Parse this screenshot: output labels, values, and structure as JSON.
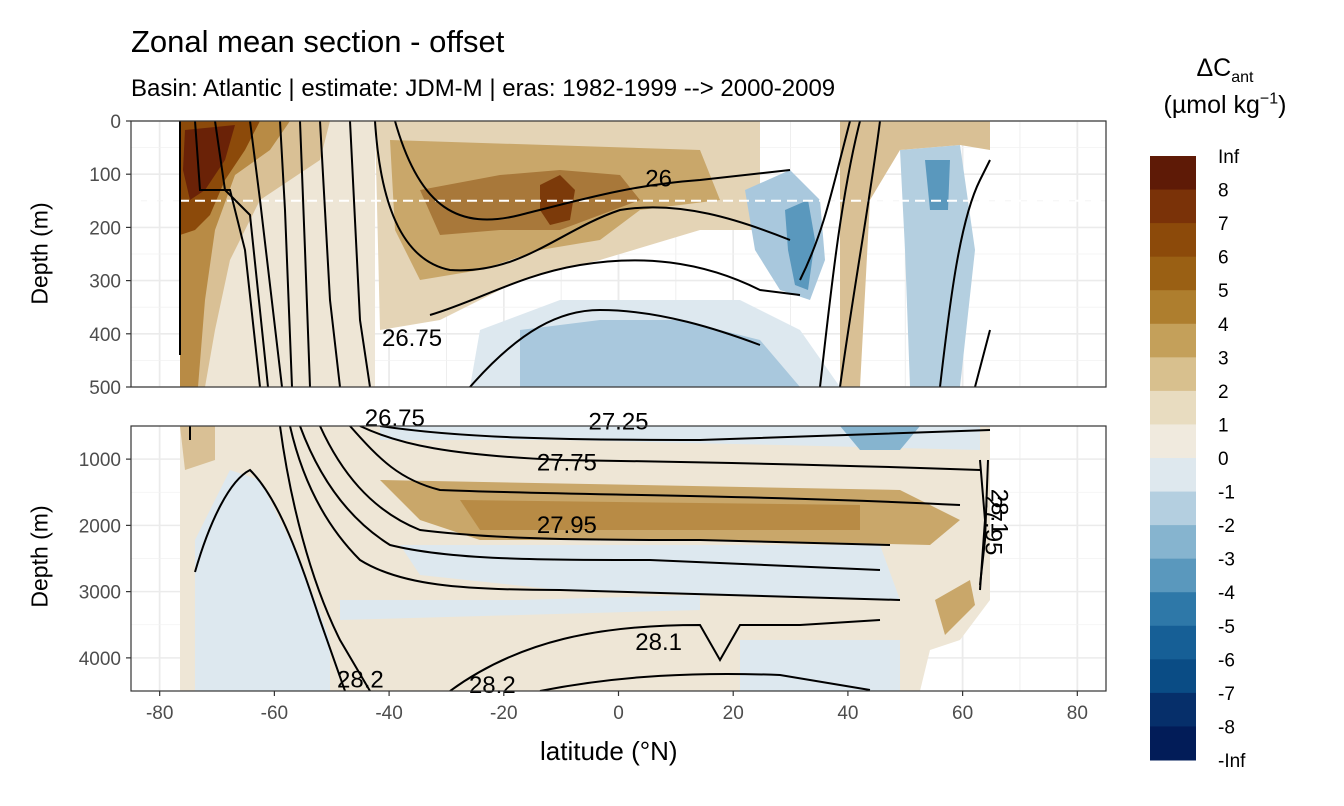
{
  "title": "Zonal mean section - offset",
  "subtitle": "Basin: Atlantic | estimate: JDM-M | eras: 1982-1999 --> 2000-2009",
  "x_label": "latitude (°N)",
  "legend": {
    "symbol": "ΔC",
    "subscript": "ant",
    "unit_main": "(µmol kg",
    "unit_exp": "−1",
    "unit_close": ")",
    "labels": [
      "Inf",
      "8",
      "7",
      "6",
      "5",
      "4",
      "3",
      "2",
      "1",
      "0",
      "-1",
      "-2",
      "-3",
      "-4",
      "-5",
      "-6",
      "-7",
      "-8",
      "-Inf"
    ],
    "colors": [
      "#5e1a06",
      "#7a3208",
      "#8c4a0a",
      "#9a6014",
      "#ae7e2e",
      "#c4a05a",
      "#d8c08e",
      "#e8dcc0",
      "#f0eade",
      "#dee8ee",
      "#b4cfe0",
      "#86b4cf",
      "#5a98bd",
      "#2e78a8",
      "#165f96",
      "#0a4c85",
      "#062f6a",
      "#021c58"
    ]
  },
  "chart_data": [
    {
      "type": "heatmap",
      "panel": "upper",
      "ylabel": "Depth (m)",
      "xlim": [
        -85,
        85
      ],
      "ylim": [
        500,
        0
      ],
      "x_ticks": [
        -80,
        -60,
        -40,
        -20,
        0,
        20,
        40,
        60,
        80
      ],
      "y_ticks": [
        0,
        100,
        200,
        300,
        400,
        500
      ],
      "reference_depth": 150,
      "isopycnal_labels": [
        {
          "text": "26",
          "lat": 7,
          "depth": 123
        },
        {
          "text": "26.75",
          "lat": -36,
          "depth": 423
        }
      ]
    },
    {
      "type": "heatmap",
      "panel": "lower",
      "ylabel": "Depth (m)",
      "xlim": [
        -85,
        85
      ],
      "ylim": [
        4500,
        500
      ],
      "x_ticks": [
        -80,
        -60,
        -40,
        -20,
        0,
        20,
        40,
        60,
        80
      ],
      "x_tick_labels": [
        "-80",
        "-60",
        "-40",
        "-20",
        "0",
        "20",
        "40",
        "60",
        "80"
      ],
      "y_ticks": [
        1000,
        2000,
        3000,
        4000
      ],
      "isopycnal_labels": [
        {
          "text": "26.75",
          "lat": -39,
          "depth": 500
        },
        {
          "text": "27.25",
          "lat": 0,
          "depth": 555
        },
        {
          "text": "27.75",
          "lat": -9,
          "depth": 1175
        },
        {
          "text": "27.95",
          "lat": -9,
          "depth": 2115
        },
        {
          "text": "28.1",
          "lat": 7,
          "depth": 3880
        },
        {
          "text": "28.2",
          "lat": -45,
          "depth": 4450
        },
        {
          "text": "28.2",
          "lat": -22,
          "depth": 4530
        },
        {
          "text": "27.95",
          "lat": 64,
          "depth": 2000,
          "vertical": true
        },
        {
          "text": "28.1",
          "lat": 65,
          "depth": 1800,
          "vertical": true
        }
      ]
    }
  ]
}
